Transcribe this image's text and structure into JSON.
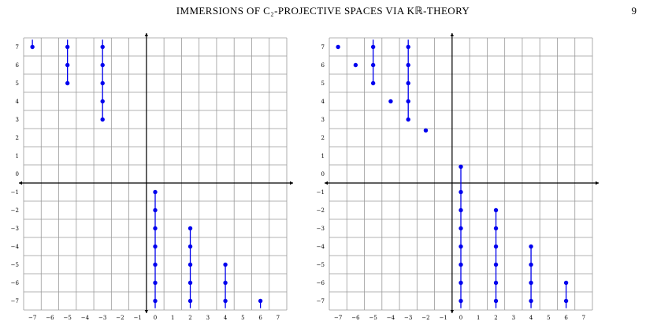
{
  "header": {
    "running_title": "IMMERSIONS OF C₂-PROJECTIVE SPACES VIA Kℝ-THEORY",
    "page_number": "9"
  },
  "chart_data": [
    {
      "type": "scatter",
      "title": "",
      "xlabel": "",
      "ylabel": "",
      "xlim": [
        -7,
        7
      ],
      "ylim": [
        -7,
        7
      ],
      "grid": true,
      "x_ticks": [
        "−7",
        "−6",
        "−5",
        "−4",
        "−3",
        "−2",
        "−1",
        "0",
        "1",
        "2",
        "3",
        "4",
        "5",
        "6",
        "7"
      ],
      "y_ticks": [
        "−7",
        "−6",
        "−5",
        "−4",
        "−3",
        "−2",
        "−1",
        "0",
        "1",
        "2",
        "3",
        "4",
        "5",
        "6",
        "7"
      ],
      "point_color": "#0000ee",
      "points": [
        {
          "x": -7,
          "y": 7
        },
        {
          "x": -5,
          "y": 7
        },
        {
          "x": -5,
          "y": 6
        },
        {
          "x": -5,
          "y": 5
        },
        {
          "x": -3,
          "y": 7
        },
        {
          "x": -3,
          "y": 6
        },
        {
          "x": -3,
          "y": 5
        },
        {
          "x": -3,
          "y": 4
        },
        {
          "x": -3,
          "y": 3
        },
        {
          "x": 0,
          "y": -1
        },
        {
          "x": 0,
          "y": -2
        },
        {
          "x": 0,
          "y": -3
        },
        {
          "x": 0,
          "y": -4
        },
        {
          "x": 0,
          "y": -5
        },
        {
          "x": 0,
          "y": -6
        },
        {
          "x": 0,
          "y": -7
        },
        {
          "x": 2,
          "y": -3
        },
        {
          "x": 2,
          "y": -4
        },
        {
          "x": 2,
          "y": -5
        },
        {
          "x": 2,
          "y": -6
        },
        {
          "x": 2,
          "y": -7
        },
        {
          "x": 4,
          "y": -5
        },
        {
          "x": 4,
          "y": -6
        },
        {
          "x": 4,
          "y": -7
        },
        {
          "x": 6,
          "y": -7
        }
      ],
      "segments": [
        {
          "x": -7,
          "from": 7,
          "to": 7.4
        },
        {
          "x": -5,
          "from": 5,
          "to": 7.4
        },
        {
          "x": -3,
          "from": 3,
          "to": 7.4
        },
        {
          "x": 0,
          "from": -7.4,
          "to": -1
        },
        {
          "x": 2,
          "from": -7.4,
          "to": -3
        },
        {
          "x": 4,
          "from": -7.4,
          "to": -5
        },
        {
          "x": 6,
          "from": -7.4,
          "to": -7
        }
      ]
    },
    {
      "type": "scatter",
      "title": "",
      "xlabel": "",
      "ylabel": "",
      "xlim": [
        -7,
        7
      ],
      "ylim": [
        -7,
        7
      ],
      "grid": true,
      "x_ticks": [
        "−7",
        "−6",
        "−5",
        "−4",
        "−3",
        "−2",
        "−1",
        "0",
        "1",
        "2",
        "3",
        "4",
        "5",
        "6",
        "7"
      ],
      "y_ticks": [
        "−7",
        "−6",
        "−5",
        "−4",
        "−3",
        "−2",
        "−1",
        "0",
        "1",
        "2",
        "3",
        "4",
        "5",
        "6",
        "7"
      ],
      "point_color": "#0000ee",
      "points": [
        {
          "x": -7,
          "y": 7
        },
        {
          "x": -6,
          "y": 6
        },
        {
          "x": -5,
          "y": 7
        },
        {
          "x": -5,
          "y": 6
        },
        {
          "x": -5,
          "y": 5
        },
        {
          "x": -4,
          "y": 4
        },
        {
          "x": -3,
          "y": 7
        },
        {
          "x": -3,
          "y": 6
        },
        {
          "x": -3,
          "y": 5
        },
        {
          "x": -3,
          "y": 4
        },
        {
          "x": -3,
          "y": 3
        },
        {
          "x": -2,
          "y": 2.4
        },
        {
          "x": 0,
          "y": 0.4
        },
        {
          "x": 0,
          "y": -1
        },
        {
          "x": 0,
          "y": -2
        },
        {
          "x": 0,
          "y": -3
        },
        {
          "x": 0,
          "y": -4
        },
        {
          "x": 0,
          "y": -5
        },
        {
          "x": 0,
          "y": -6
        },
        {
          "x": 0,
          "y": -7
        },
        {
          "x": 2,
          "y": -2
        },
        {
          "x": 2,
          "y": -3
        },
        {
          "x": 2,
          "y": -4
        },
        {
          "x": 2,
          "y": -5
        },
        {
          "x": 2,
          "y": -6
        },
        {
          "x": 2,
          "y": -7
        },
        {
          "x": 4,
          "y": -4
        },
        {
          "x": 4,
          "y": -5
        },
        {
          "x": 4,
          "y": -6
        },
        {
          "x": 4,
          "y": -7
        },
        {
          "x": 6,
          "y": -6
        },
        {
          "x": 6,
          "y": -7
        }
      ],
      "segments": [
        {
          "x": -5,
          "from": 5,
          "to": 7.4
        },
        {
          "x": -3,
          "from": 3,
          "to": 7.4
        },
        {
          "x": 0,
          "from": -7.4,
          "to": 0.4
        },
        {
          "x": 2,
          "from": -7.4,
          "to": -2
        },
        {
          "x": 4,
          "from": -7.4,
          "to": -4
        },
        {
          "x": 6,
          "from": -7.4,
          "to": -6
        }
      ]
    }
  ]
}
